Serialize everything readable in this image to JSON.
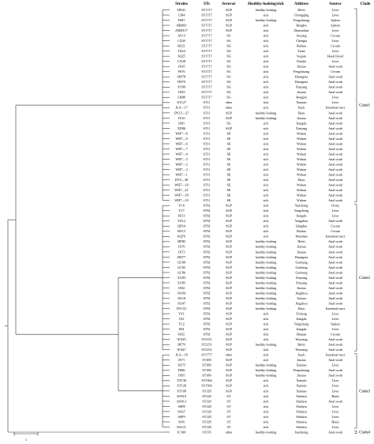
{
  "headers": [
    "Strains",
    "STs",
    "Serovar",
    "Healthy-looking/sick",
    "Address",
    "Source",
    "Clade"
  ],
  "rows": [
    [
      "HN41",
      "ST1717",
      "SGP",
      "healthy-looking",
      "Hefei",
      "Liver"
    ],
    [
      "CJ04",
      "ST1717",
      "SGP",
      "sick",
      "Chongqing",
      "Liver"
    ],
    [
      "FS87",
      "ST1717",
      "SGP",
      "healthy-looking",
      "Fengshuang",
      "Spleen"
    ],
    [
      "HB093",
      "ST1717",
      "SGP",
      "sick",
      "Hengbu",
      "Spleen"
    ],
    [
      "ZMD117",
      "ST1717",
      "SGP",
      "sick",
      "Zhumadian",
      "Liver"
    ],
    [
      "AY13",
      "ST1717",
      "SG",
      "sick",
      "Anyang",
      "Cecum"
    ],
    [
      "CZ20",
      "ST1717",
      "SG",
      "sick",
      "Chengzi",
      "Liver"
    ],
    [
      "RZ21",
      "ST1717",
      "SG",
      "sick",
      "Rizhao",
      "Cecum"
    ],
    [
      "TA24",
      "ST1717",
      "SG",
      "sick",
      "Taian",
      "Liver"
    ],
    [
      "SQ25",
      "ST1717",
      "SG",
      "sick",
      "Suqian",
      "Heart blood"
    ],
    [
      "CX28",
      "ST1717",
      "SG",
      "sick",
      "Chaoke",
      "Liver"
    ],
    [
      "JX45",
      "ST1717",
      "SG",
      "sick",
      "Jiaxiao",
      "Anal swab"
    ],
    [
      "FS76",
      "ST1717",
      "SG",
      "sick",
      "Fengshuang",
      "Cecum"
    ],
    [
      "HN78",
      "ST1717",
      "SG",
      "sick",
      "Huangxia",
      "Anal swab"
    ],
    [
      "HN79",
      "ST1717",
      "SG",
      "sick",
      "Huangxia",
      "Anal swab"
    ],
    [
      "XY89",
      "ST1717",
      "SG",
      "sick",
      "Xinyang",
      "Anal swab"
    ],
    [
      "JX93",
      "ST1717",
      "SG",
      "sick",
      "Jiaxiao",
      "Anal swab"
    ],
    [
      "LB88",
      "ST1717",
      "SG",
      "sick",
      "Henglin",
      "Liver"
    ],
    [
      "XT127",
      "ST11",
      "other",
      "sick",
      "Xiantao",
      "Liver"
    ],
    [
      "JLA—17",
      "ST11",
      "other",
      "sick",
      "Jiaoli",
      "Intestinal tract"
    ],
    [
      "DY15—27",
      "ST11",
      "SGP",
      "healthy-looking",
      "Dayu",
      "Anal swab"
    ],
    [
      "JX10",
      "ST11",
      "SGP",
      "healthy-looking",
      "Jiaxiao",
      "Anal swab"
    ],
    [
      "JS81",
      "ST11",
      "SG",
      "sick",
      "Jiangdu",
      "Anal swab"
    ],
    [
      "XD96",
      "ST11",
      "SGP",
      "sick",
      "Xinyang",
      "Anal swab"
    ],
    [
      "WH7—8",
      "ST11",
      "SE",
      "sick",
      "Wuhan",
      "Anal swab"
    ],
    [
      "WH7—9",
      "ST11",
      "SE",
      "sick",
      "Wuhan",
      "Anal swab"
    ],
    [
      "WH7—6",
      "ST11",
      "SE",
      "sick",
      "Wuhan",
      "Anal swab"
    ],
    [
      "WH7—7",
      "ST11",
      "SE",
      "sick",
      "Wuhan",
      "Anal swab"
    ],
    [
      "WH7—4",
      "ST11",
      "SE",
      "sick",
      "Wuhan",
      "Anal swab"
    ],
    [
      "WH7—5",
      "ST11",
      "SE",
      "sick",
      "Wuhan",
      "Anal swab"
    ],
    [
      "WH7—2",
      "ST11",
      "SE",
      "sick",
      "Wuhan",
      "Anal swab"
    ],
    [
      "WH7—3",
      "ST11",
      "SE",
      "sick",
      "Wuhan",
      "Anal swab"
    ],
    [
      "WH7—1",
      "ST11",
      "SE",
      "sick",
      "Wuhan",
      "Anal swab"
    ],
    [
      "DY5—38",
      "ST11",
      "SE",
      "sick",
      "Dayu",
      "Anal swab"
    ],
    [
      "WH7—10",
      "ST11",
      "SE",
      "sick",
      "Wuhan",
      "Anal swab"
    ],
    [
      "WH7—21",
      "ST11",
      "SE",
      "sick",
      "Wuhan",
      "Anal swab"
    ],
    [
      "WH7—18",
      "ST11",
      "SE",
      "sick",
      "Wuhan",
      "Anal swab"
    ],
    [
      "WH7—19",
      "ST11",
      "SE",
      "sick",
      "Wuhan",
      "Anal swab"
    ],
    [
      "YC6",
      "ST92",
      "SGP",
      "sick",
      "Yuncheng",
      "Ovary"
    ],
    [
      "TC7",
      "ST92",
      "SGP",
      "sick",
      "Tongcheng",
      "Liver"
    ],
    [
      "JD11",
      "ST92",
      "SGP",
      "sick",
      "Jiangdu",
      "Liver"
    ],
    [
      "YZ12",
      "ST92",
      "SGP",
      "sick",
      "Yangzhou",
      "Anal swab"
    ],
    [
      "QD14",
      "ST92",
      "SGP",
      "sick",
      "Qingdao",
      "Cecum"
    ],
    [
      "RZ15",
      "ST92",
      "SGP",
      "sick",
      "Rizhao",
      "Cecum"
    ],
    [
      "KQ76",
      "ST92",
      "SGP",
      "sick",
      "Wenshan",
      "Intestinal tract"
    ],
    [
      "HF80",
      "ST92",
      "SGP",
      "healthy-looking",
      "Hefei",
      "Anal swab"
    ],
    [
      "JX76",
      "ST92",
      "SGP",
      "healthy-looking",
      "Jiaxiao",
      "Anal swab"
    ],
    [
      "JX73",
      "ST92",
      "SGP",
      "healthy-looking",
      "Jiaxiao",
      "Anal swab"
    ],
    [
      "HN77",
      "ST92",
      "SGP",
      "healthy-looking",
      "Huangxia",
      "Anal swab"
    ],
    [
      "GC80",
      "ST92",
      "SGP",
      "healthy-looking",
      "Gucheng",
      "Anal swab"
    ],
    [
      "GC82",
      "ST92",
      "SGP",
      "healthy-looking",
      "Gucheng",
      "Anal swab"
    ],
    [
      "GC86",
      "ST92",
      "SGP",
      "healthy-looking",
      "Gucheng",
      "Anal swab"
    ],
    [
      "XY83",
      "ST92",
      "SGP",
      "healthy-looking",
      "Xinyang",
      "Anal swab"
    ],
    [
      "XY85",
      "ST92",
      "SGP",
      "healthy-looking",
      "Xinyang",
      "Anal swab"
    ],
    [
      "JS92",
      "ST92",
      "SGP",
      "healthy-looking",
      "Jiaxiao",
      "Anal swab"
    ],
    [
      "JS104",
      "ST92",
      "SGP",
      "healthy-looking",
      "Jingzhou",
      "Anal swab"
    ],
    [
      "JS110",
      "ST92",
      "SGP",
      "healthy-looking",
      "Jiaxiao",
      "Anal swab"
    ],
    [
      "JS107",
      "ST92",
      "SGP",
      "healthy-looking",
      "Jingzhou",
      "Anal swab"
    ],
    [
      "DY153",
      "ST92",
      "SGP",
      "healthy-looking",
      "Dayu",
      "Intestinal tract"
    ],
    [
      "YZ1",
      "ST92",
      "SGP",
      "sick",
      "Yicheng",
      "Liver"
    ],
    [
      "JX3",
      "ST92",
      "SGP",
      "sick",
      "Jiangdu",
      "Liver"
    ],
    [
      "TC2",
      "ST92",
      "SGP",
      "sick",
      "Tongcheng",
      "Spleen"
    ],
    [
      "JD4",
      "ST92",
      "SGP",
      "sick",
      "Jiangdu",
      "Liver"
    ],
    [
      "HA5",
      "ST92",
      "SGP",
      "sick",
      "Huaian",
      "Cecum"
    ],
    [
      "WX45",
      "ST2151",
      "SGP",
      "sick",
      "Wuxiang",
      "Anal swab"
    ],
    [
      "HF70",
      "ST2151",
      "SGP",
      "healthy-looking",
      "Hefei",
      "Anal swab"
    ],
    [
      "WX47",
      "ST2151",
      "SGP",
      "sick",
      "Wuxiang",
      "Anal swab"
    ],
    [
      "JLA—18",
      "ST1777",
      "other",
      "sick",
      "Jiaoli",
      "Intestinal tract"
    ],
    [
      "JS71",
      "ST100",
      "SGP",
      "sick",
      "Jiaxiao",
      "Anal swab"
    ],
    [
      "XS75",
      "ST180",
      "SGP",
      "healthy-looking",
      "Xiantao",
      "Liver"
    ],
    [
      "FS86",
      "ST180",
      "SGP",
      "healthy-looking",
      "Fengshuang",
      "Anal swab"
    ],
    [
      "JX95",
      "ST180",
      "SGP",
      "healthy-looking",
      "Jiaxiao",
      "Anal swab"
    ],
    [
      "XT130",
      "ST1564",
      "SGP",
      "sick",
      "Xiantao",
      "Liver"
    ],
    [
      "XT128",
      "ST1564",
      "SGP",
      "sick",
      "Xiantao",
      "Liver"
    ],
    [
      "XT109",
      "ST128",
      "SGP",
      "sick",
      "Xiantao",
      "Liver"
    ],
    [
      "SSN10",
      "ST128",
      "ST",
      "sick",
      "Shishou",
      "Brain"
    ],
    [
      "SSN13",
      "ST128",
      "ST",
      "sick",
      "Shishou",
      "Anal swab"
    ],
    [
      "SSP8",
      "ST128",
      "ST",
      "sick",
      "Shishou",
      "Liver"
    ],
    [
      "SSG7",
      "ST128",
      "ST",
      "sick",
      "Shishou",
      "Liver"
    ],
    [
      "SSP9",
      "ST128",
      "ST",
      "sick",
      "Shishou",
      "Liver"
    ],
    [
      "SSN",
      "ST128",
      "ST",
      "sick",
      "Shishou",
      "Brain"
    ],
    [
      "SSG11",
      "ST128",
      "ST",
      "sick",
      "Shishou",
      "Liver"
    ],
    [
      "JC100",
      "ST119",
      "other",
      "healthy-looking",
      "Jianzheng",
      "Anal swab"
    ]
  ],
  "clades": [
    "Clade1",
    "Clade2",
    "Clade3",
    "Clade4"
  ],
  "scale_label": "1"
}
